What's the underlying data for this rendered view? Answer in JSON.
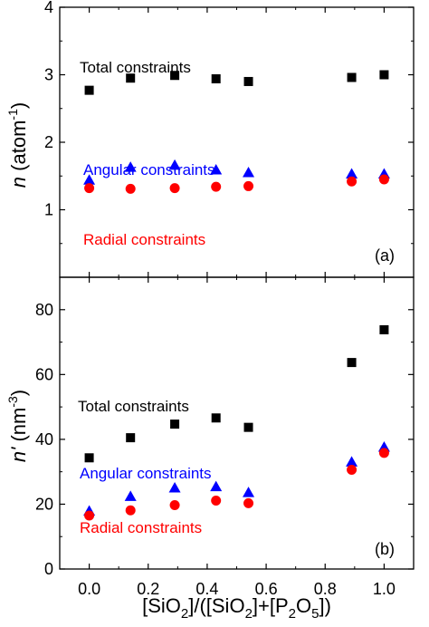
{
  "chart_data": [
    {
      "type": "scatter",
      "panel_label": "(a)",
      "ylabel_parts": [
        "n",
        " (atom",
        "-1",
        ")"
      ],
      "xlim": [
        -0.1,
        1.1
      ],
      "ylim": [
        0,
        4
      ],
      "yticks": [
        1,
        2,
        3,
        4
      ],
      "series": [
        {
          "label": "Total constraints",
          "marker": "square",
          "color": "#000000",
          "x": [
            0.0,
            0.14,
            0.29,
            0.43,
            0.54,
            0.89,
            1.0
          ],
          "y": [
            2.77,
            2.95,
            2.99,
            2.94,
            2.9,
            2.96,
            3.0
          ]
        },
        {
          "label": "Angular constraints",
          "marker": "triangle",
          "color": "#0000ff",
          "x": [
            0.0,
            0.14,
            0.29,
            0.43,
            0.54,
            0.89,
            1.0
          ],
          "y": [
            1.44,
            1.63,
            1.66,
            1.59,
            1.55,
            1.53,
            1.53
          ]
        },
        {
          "label": "Radial constraints",
          "marker": "circle",
          "color": "#ff0000",
          "x": [
            0.0,
            0.14,
            0.29,
            0.43,
            0.54,
            0.89,
            1.0
          ],
          "y": [
            1.32,
            1.31,
            1.32,
            1.34,
            1.35,
            1.42,
            1.45
          ]
        }
      ]
    },
    {
      "type": "scatter",
      "panel_label": "(b)",
      "ylabel_parts": [
        "n'",
        " (nm",
        "-3",
        ")"
      ],
      "xlim": [
        -0.1,
        1.1
      ],
      "ylim": [
        0,
        90
      ],
      "yticks": [
        0,
        20,
        40,
        60,
        80
      ],
      "xticks": [
        0.0,
        0.2,
        0.4,
        0.6,
        0.8,
        1.0
      ],
      "xtick_labels": [
        "0.0",
        "0.2",
        "0.4",
        "0.6",
        "0.8",
        "1.0"
      ],
      "xlabel_parts": [
        "[SiO",
        "2",
        "]/([SiO",
        "2",
        "]+[P",
        "2",
        "O",
        "5",
        "])"
      ],
      "series": [
        {
          "label": "Total constraints",
          "marker": "square",
          "color": "#000000",
          "x": [
            0.0,
            0.14,
            0.29,
            0.43,
            0.54,
            0.89,
            1.0
          ],
          "y": [
            34.3,
            40.5,
            44.7,
            46.6,
            43.7,
            63.7,
            73.8
          ]
        },
        {
          "label": "Angular constraints",
          "marker": "triangle",
          "color": "#0000ff",
          "x": [
            0.0,
            0.14,
            0.29,
            0.43,
            0.54,
            0.89,
            1.0
          ],
          "y": [
            17.9,
            22.4,
            25.0,
            25.4,
            23.6,
            33.0,
            37.6
          ]
        },
        {
          "label": "Radial constraints",
          "marker": "circle",
          "color": "#ff0000",
          "x": [
            0.0,
            0.14,
            0.29,
            0.43,
            0.54,
            0.89,
            1.0
          ],
          "y": [
            16.5,
            18.1,
            19.7,
            21.1,
            20.3,
            30.6,
            35.8
          ]
        }
      ]
    }
  ]
}
